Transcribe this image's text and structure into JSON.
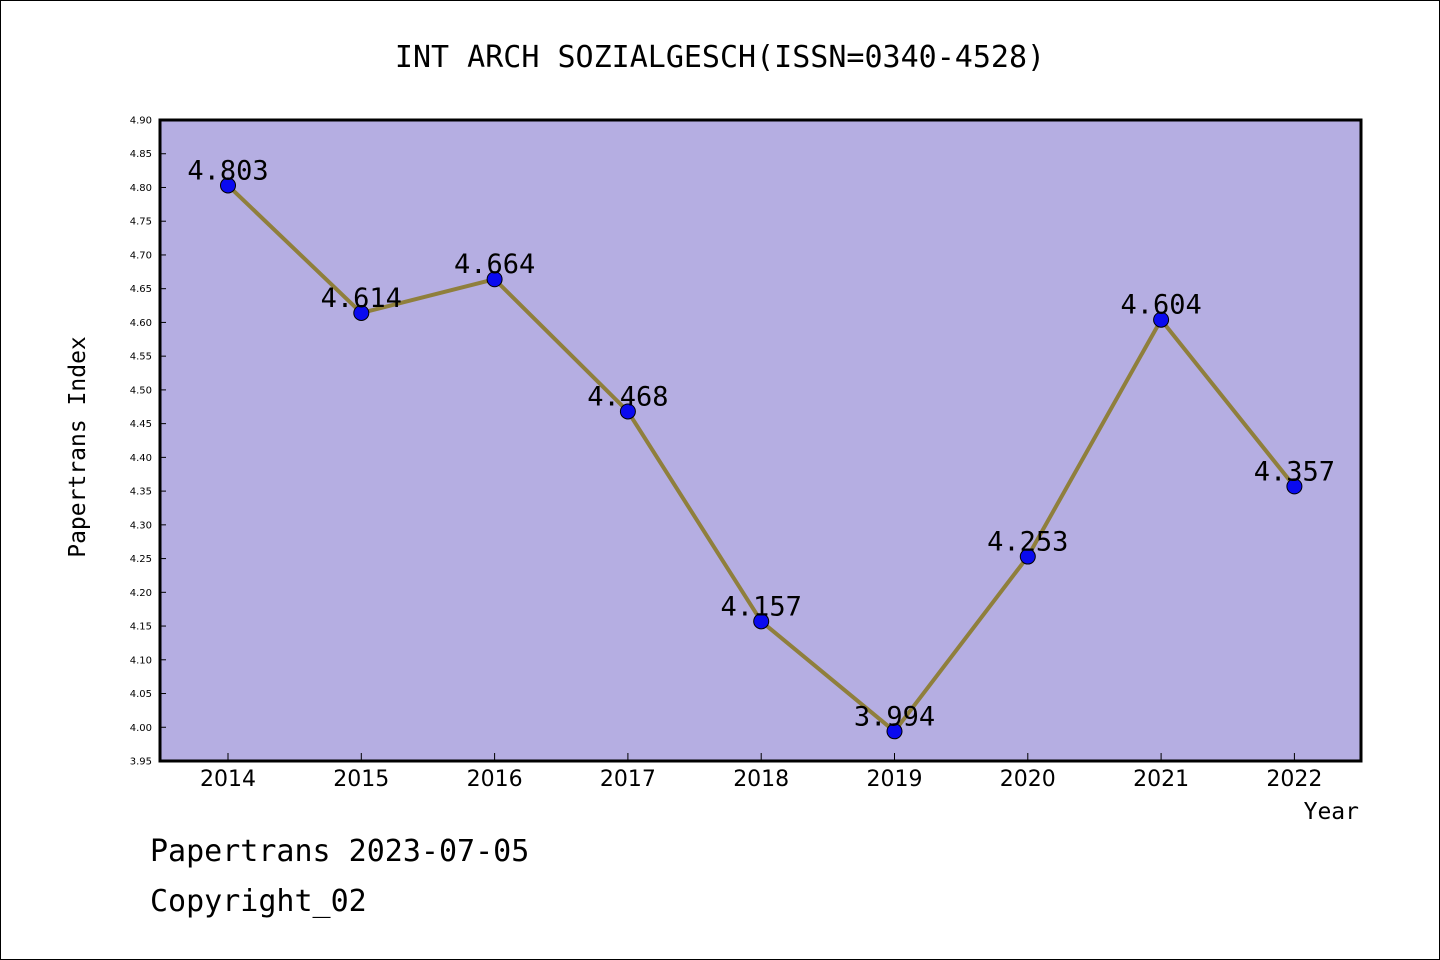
{
  "chart_data": {
    "type": "line",
    "title": "INT ARCH SOZIALGESCH(ISSN=0340-4528)",
    "xlabel": "Year",
    "ylabel": "Papertrans Index",
    "categories": [
      "2014",
      "2015",
      "2016",
      "2017",
      "2018",
      "2019",
      "2020",
      "2021",
      "2022"
    ],
    "values": [
      4.803,
      4.614,
      4.664,
      4.468,
      4.157,
      3.994,
      4.253,
      4.604,
      4.357
    ],
    "value_labels": [
      "4.803",
      "4.614",
      "4.664",
      "4.468",
      "4.157",
      "3.994",
      "4.253",
      "4.604",
      "4.357"
    ],
    "ylim": [
      3.95,
      4.9
    ],
    "yticks": [
      "3.95",
      "4.00",
      "4.05",
      "4.10",
      "4.15",
      "4.20",
      "4.25",
      "4.30",
      "4.35",
      "4.40",
      "4.45",
      "4.50",
      "4.55",
      "4.60",
      "4.65",
      "4.70",
      "4.75",
      "4.80",
      "4.85",
      "4.90"
    ],
    "grid": false,
    "colors": {
      "plot_background": "#b5aee2",
      "line": "#8f7f3c",
      "marker": "#0a0af0"
    }
  },
  "footer": {
    "date_line": "Papertrans 2023-07-05",
    "copyright": "Copyright_02"
  }
}
